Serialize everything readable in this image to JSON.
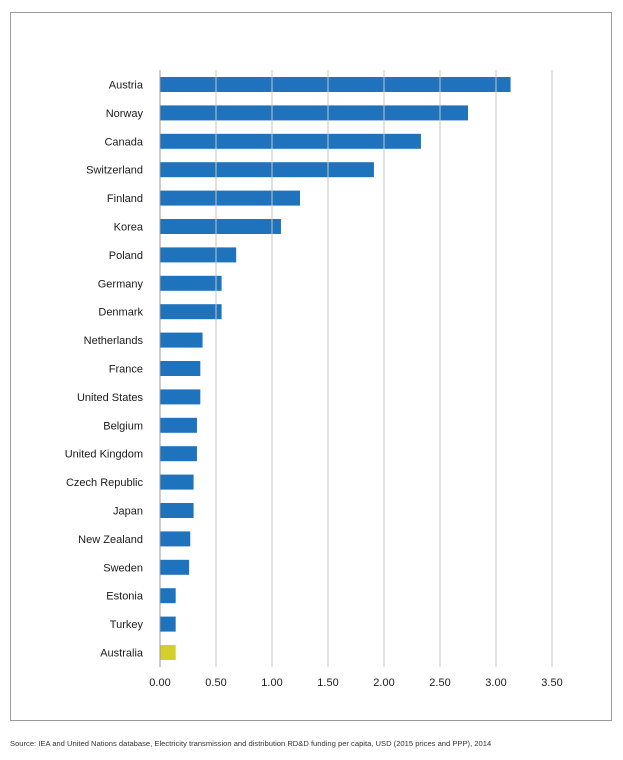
{
  "chart_data": {
    "type": "bar",
    "orientation": "horizontal",
    "categories": [
      "Austria",
      "Norway",
      "Canada",
      "Switzerland",
      "Finland",
      "Korea",
      "Poland",
      "Germany",
      "Denmark",
      "Netherlands",
      "France",
      "United States",
      "Belgium",
      "United Kingdom",
      "Czech Republic",
      "Japan",
      "New Zealand",
      "Sweden",
      "Estonia",
      "Turkey",
      "Australia"
    ],
    "values": [
      3.13,
      2.75,
      2.33,
      1.91,
      1.25,
      1.08,
      0.68,
      0.55,
      0.55,
      0.38,
      0.36,
      0.36,
      0.33,
      0.33,
      0.3,
      0.3,
      0.27,
      0.26,
      0.14,
      0.14,
      0.14
    ],
    "highlight": "Australia",
    "xlim": [
      0,
      3.5
    ],
    "xticks": [
      "0.00",
      "0.50",
      "1.00",
      "1.50",
      "2.00",
      "2.50",
      "3.00",
      "3.50"
    ],
    "grid": "vertical",
    "colors": {
      "bar": "#1f73bd",
      "highlight": "#d4cf2a",
      "grid": "#c4c4c4"
    },
    "title": "",
    "xlabel": "",
    "ylabel": ""
  },
  "source": "Source: IEA and United Nations database, Electricity transmission and distribution RD&D funding per capita, USD (2015 prices and PPP), 2014"
}
